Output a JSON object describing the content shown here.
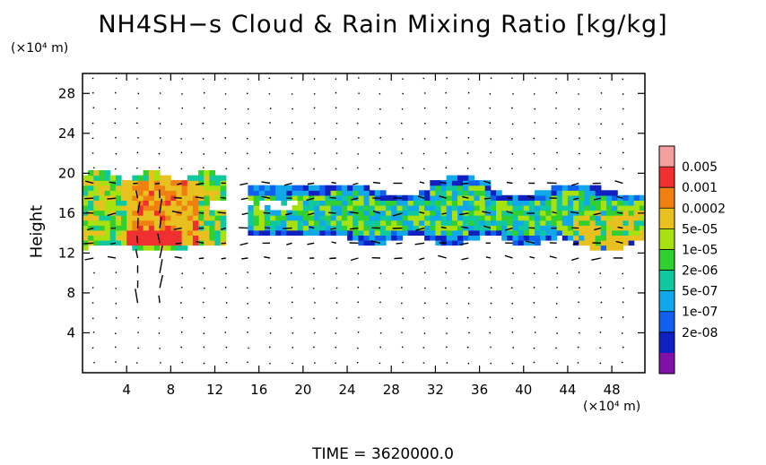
{
  "title": "NH4SH−s Cloud & Rain Mixing Ratio [kg/kg]",
  "time_label": "TIME = 3620000.0",
  "chart_data": {
    "type": "heatmap",
    "title": "NH4SH−s Cloud & Rain Mixing Ratio [kg/kg]",
    "xlabel": "",
    "x_unit": "(×10⁴ m)",
    "ylabel": "Height",
    "y_unit": "(×10⁴ m)",
    "xlim": [
      0,
      51
    ],
    "ylim": [
      0,
      30
    ],
    "x_ticks": [
      4,
      8,
      12,
      16,
      20,
      24,
      28,
      32,
      36,
      40,
      44,
      48
    ],
    "y_ticks": [
      4,
      8,
      12,
      16,
      20,
      24,
      28
    ],
    "colorbar": {
      "labels": [
        "0.005",
        "0.001",
        "0.0002",
        "5e-05",
        "1e-05",
        "2e-06",
        "5e-07",
        "1e-07",
        "2e-08"
      ],
      "colors": [
        "#f4a0a0",
        "#f03030",
        "#f08010",
        "#e8c020",
        "#a8e010",
        "#30d030",
        "#10c8a0",
        "#10a8e8",
        "#1060f0",
        "#1020c0",
        "#8010a8"
      ]
    },
    "cloud_layer": {
      "segments": [
        {
          "x_range": [
            0,
            13
          ],
          "y_range": [
            12,
            20
          ]
        },
        {
          "x_range": [
            15,
            51
          ],
          "y_range": [
            12.5,
            19
          ]
        }
      ],
      "core_regions": [
        {
          "x_range": [
            4,
            10
          ],
          "y_range": [
            12.5,
            19
          ],
          "value": "0.0002"
        },
        {
          "x_range": [
            4.5,
            9
          ],
          "y_range": [
            12.5,
            14
          ],
          "value": "0.001"
        }
      ]
    },
    "wind_vectors": true
  }
}
